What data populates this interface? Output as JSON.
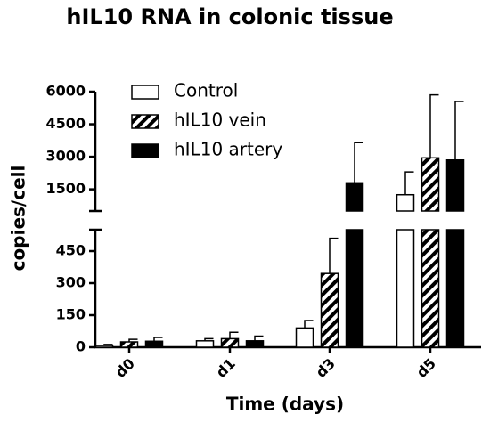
{
  "chart_data": {
    "type": "bar",
    "title": "hIL10 RNA in colonic tissue",
    "x_label": "Time (days)",
    "y_label": "copies/cell",
    "categories": [
      "d0",
      "d1",
      "d3",
      "d5"
    ],
    "series": [
      {
        "name": "Control",
        "color": "#ffffff",
        "values": [
          8,
          30,
          90,
          1250
        ],
        "errors": [
          5,
          10,
          35,
          1050
        ]
      },
      {
        "name": "hIL10 vein",
        "color": "#000000",
        "hatch": true,
        "values": [
          25,
          40,
          345,
          2950
        ],
        "errors": [
          12,
          30,
          165,
          2900
        ]
      },
      {
        "name": "hIL10 artery",
        "color": "#000000",
        "values": [
          28,
          30,
          1800,
          2850
        ],
        "errors": [
          18,
          22,
          1850,
          2700
        ]
      }
    ],
    "y_segments": [
      {
        "ylim": [
          0,
          550
        ],
        "yticks": [
          0,
          150,
          300,
          450
        ]
      },
      {
        "ylim": [
          500,
          6000
        ],
        "yticks": [
          1500,
          3000,
          4500,
          6000
        ]
      }
    ]
  }
}
